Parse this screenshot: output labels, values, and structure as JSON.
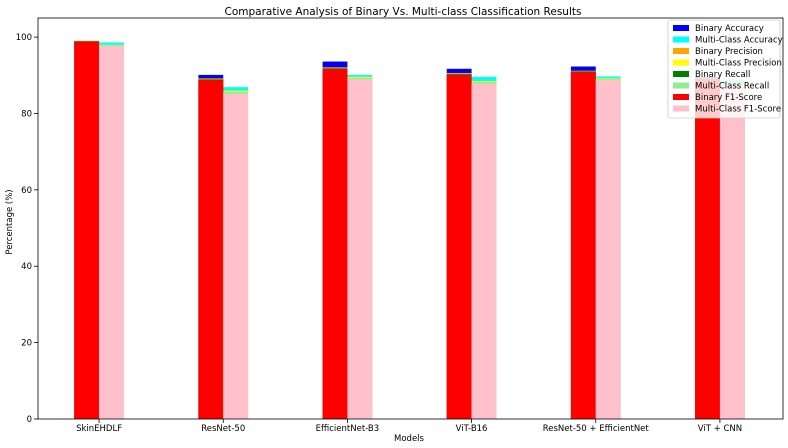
{
  "chart_data": {
    "type": "bar",
    "title": "Comparative Analysis of Binary Vs. Multi-class Classification Results",
    "xlabel": "Models",
    "ylabel": "Percentage (%)",
    "ylim": [
      0,
      105
    ],
    "yticks": [
      0,
      20,
      40,
      60,
      80,
      100
    ],
    "grid": false,
    "legend_position": "top-right",
    "barmode": "overlay",
    "categories": [
      "SkinEHDLF",
      "ResNet-50",
      "EfficientNet-B3",
      "ViT-B16",
      "ResNet-50 + EfficientNet",
      "ViT + CNN"
    ],
    "series": [
      {
        "name": "Binary Accuracy",
        "color": "#0000ff",
        "group": "binary",
        "values": [
          99.0,
          90.1,
          93.6,
          91.7,
          92.3,
          89.5
        ]
      },
      {
        "name": "Multi-Class Accuracy",
        "color": "#00ffff",
        "group": "multi",
        "values": [
          98.6,
          86.9,
          90.1,
          89.6,
          89.7,
          88.5
        ]
      },
      {
        "name": "Binary Precision",
        "color": "#ffa500",
        "group": "binary",
        "values": [
          99.0,
          89.2,
          92.1,
          90.6,
          91.2,
          89.2
        ]
      },
      {
        "name": "Multi-Class Precision",
        "color": "#ffff00",
        "group": "multi",
        "values": [
          98.0,
          86.0,
          89.6,
          88.5,
          89.2,
          88.1
        ]
      },
      {
        "name": "Binary Recall",
        "color": "#008000",
        "group": "binary",
        "values": [
          98.9,
          88.9,
          91.8,
          90.3,
          91.0,
          89.0
        ]
      },
      {
        "name": "Multi-Class Recall",
        "color": "#90ee90",
        "group": "multi",
        "values": [
          97.9,
          85.7,
          89.3,
          88.2,
          89.0,
          88.0
        ]
      },
      {
        "name": "Binary F1-Score",
        "color": "#ff0000",
        "group": "binary",
        "values": [
          98.8,
          88.7,
          91.6,
          90.1,
          90.8,
          88.9
        ]
      },
      {
        "name": "Multi-Class F1-Score",
        "color": "#ffc0cb",
        "group": "multi",
        "values": [
          97.7,
          85.2,
          89.0,
          87.8,
          88.8,
          87.8
        ]
      }
    ]
  }
}
